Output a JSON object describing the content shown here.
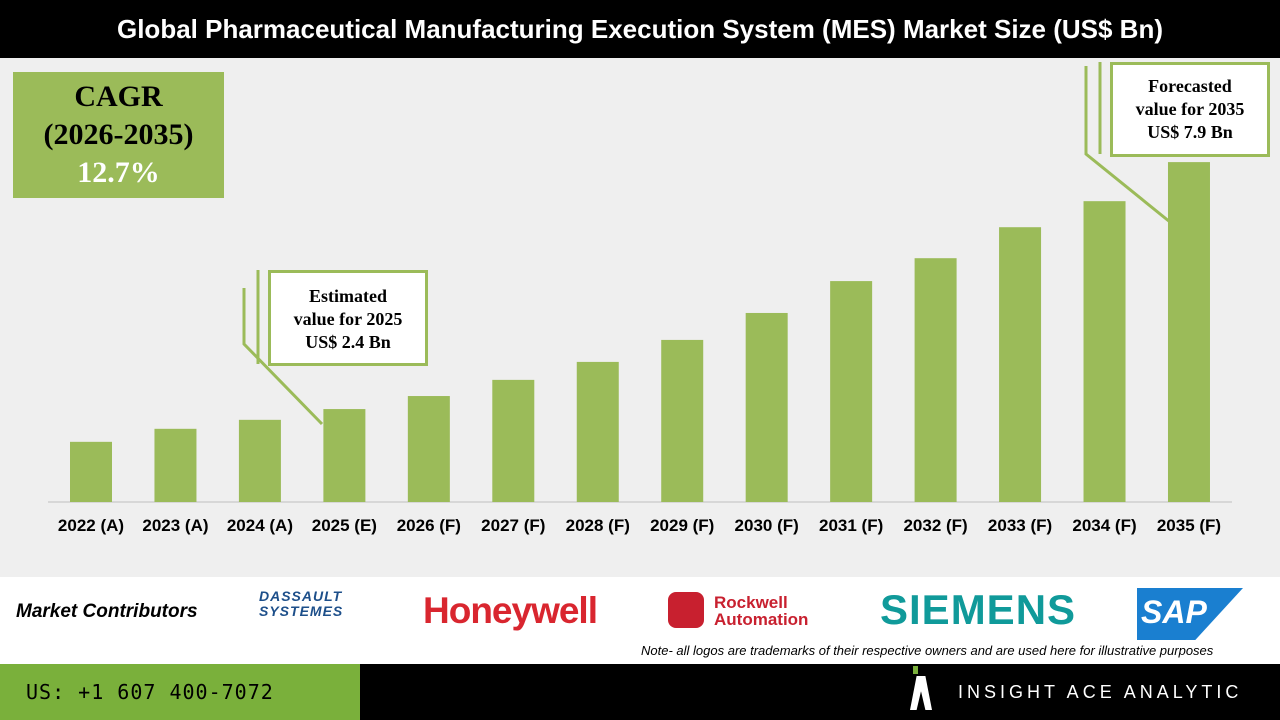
{
  "chart_data": {
    "type": "bar",
    "title": "Global Pharmaceutical Manufacturing Execution System (MES) Market Size (US$ Bn)",
    "categories": [
      "2022 (A)",
      "2023 (A)",
      "2024 (A)",
      "2025 (E)",
      "2026 (F)",
      "2027 (F)",
      "2028 (F)",
      "2029 (F)",
      "2030 (F)",
      "2031 (F)",
      "2032 (F)",
      "2033 (F)",
      "2034 (F)",
      "2035 (F)"
    ],
    "values": [
      1.67,
      1.96,
      2.16,
      2.4,
      2.69,
      3.05,
      3.45,
      3.94,
      4.54,
      5.25,
      5.76,
      6.45,
      7.03,
      7.9
    ],
    "xlabel": "",
    "ylabel": "",
    "grid": false,
    "bar_color": "#9bbb59",
    "annotations": {
      "cagr": {
        "line1": "CAGR",
        "line2": "(2026-2035)",
        "value": "12.7%"
      },
      "estimated": {
        "line1": "Estimated",
        "line2": "value for 2025",
        "line3": "US$ 2.4 Bn"
      },
      "forecasted": {
        "line1": "Forecasted",
        "line2": "value for 2035",
        "line3": "US$ 7.9 Bn"
      }
    }
  },
  "footer": {
    "contributors_label": "Market Contributors",
    "logos": [
      "DASSAULT SYSTEMES",
      "Honeywell",
      "Rockwell Automation",
      "SIEMENS",
      "SAP"
    ],
    "note": "Note- all logos are trademarks of their respective owners and are used here for illustrative purposes",
    "phone": "US: +1 607 400-7072",
    "brand": "INSIGHT ACE ANALYTIC"
  }
}
